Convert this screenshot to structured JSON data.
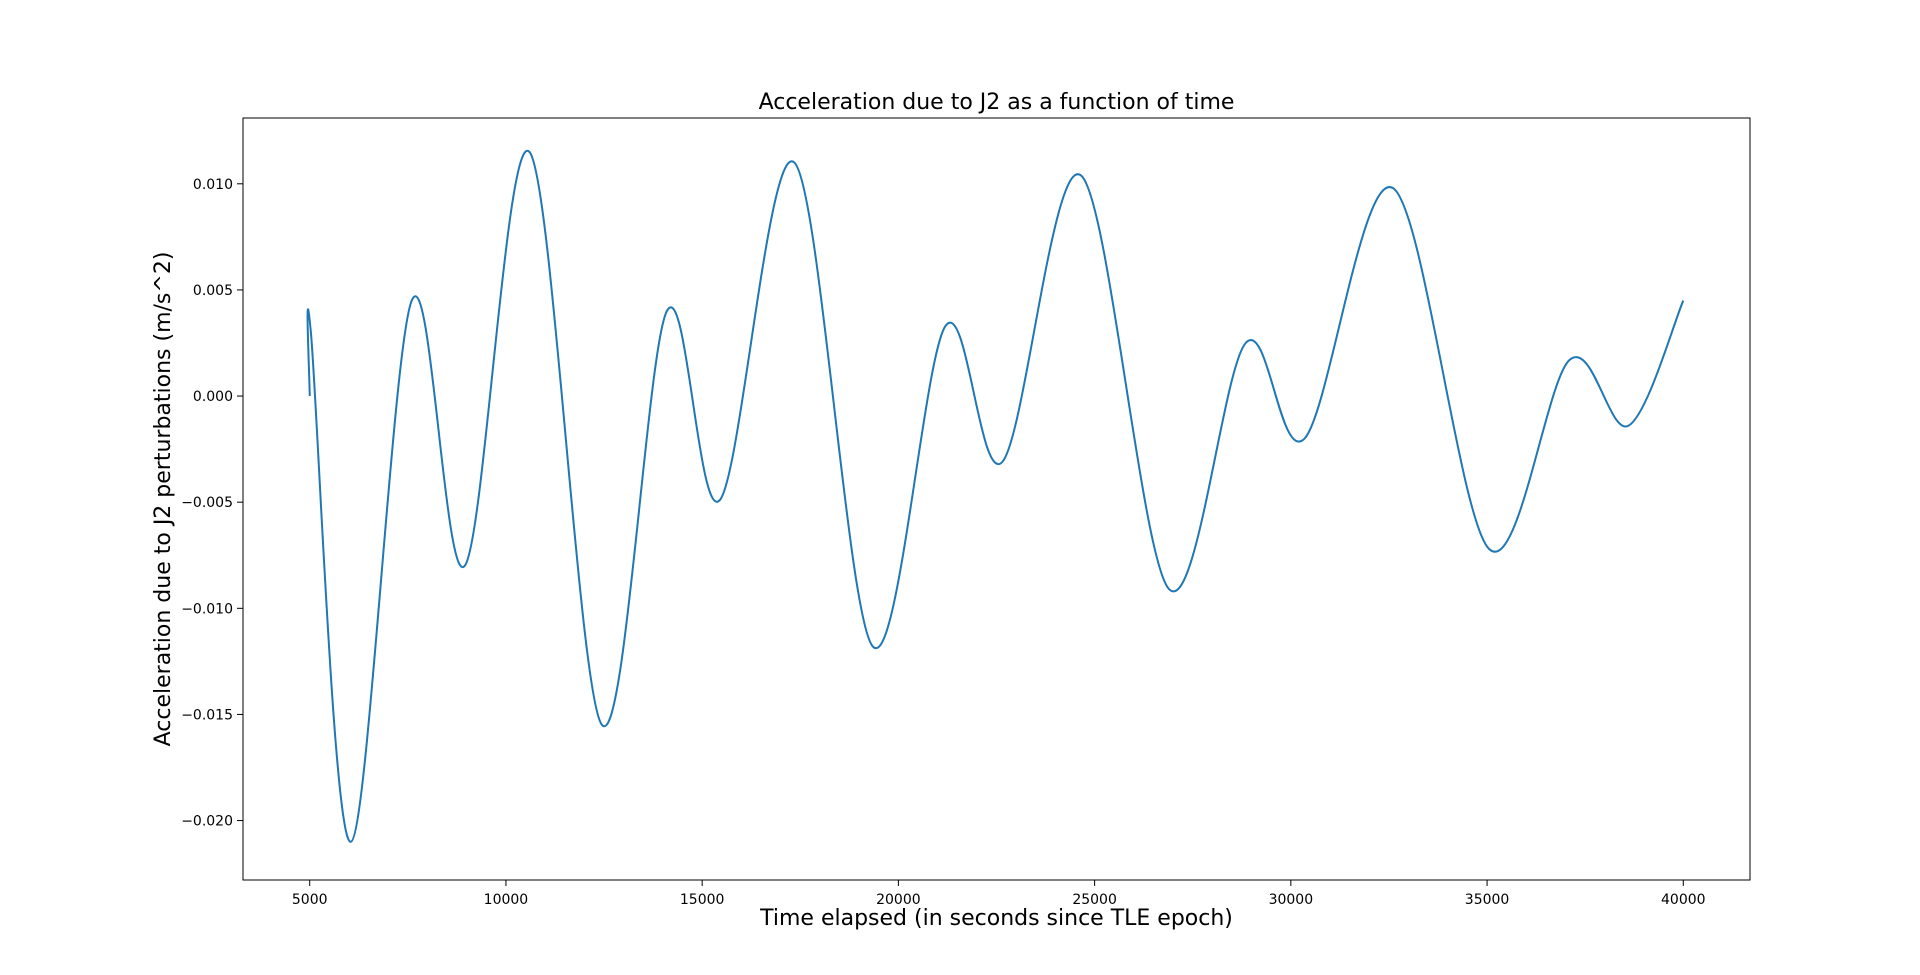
{
  "chart_data": {
    "type": "line",
    "title": "Acceleration due to J2 as a function of time",
    "xlabel": "Time elapsed (in seconds since TLE epoch)",
    "ylabel": "Acceleration due to J2 perturbations (m/s^2)",
    "xlim": [
      3300,
      41700
    ],
    "ylim": [
      -0.0228,
      0.0131
    ],
    "xticks": [
      5000,
      10000,
      15000,
      20000,
      25000,
      30000,
      35000,
      40000
    ],
    "xtick_labels": [
      "5000",
      "10000",
      "15000",
      "20000",
      "25000",
      "30000",
      "35000",
      "40000"
    ],
    "yticks": [
      -0.02,
      -0.015,
      -0.01,
      -0.005,
      0.0,
      0.005,
      0.01
    ],
    "ytick_labels": [
      "−0.020",
      "−0.015",
      "−0.010",
      "−0.005",
      "0.000",
      "0.005",
      "0.010"
    ],
    "grid": false,
    "legend": "none",
    "line_color": "#1f77b4",
    "series": [
      {
        "x": [
          5000,
          5030,
          6050,
          7600,
          8950,
          10600,
          12450,
          14100,
          15450,
          17350,
          19350,
          21200,
          22650,
          24650,
          26900,
          28850,
          30350,
          32600,
          35050,
          37100,
          38600,
          40000
        ],
        "values": [
          0.0,
          0.003,
          -0.021,
          0.0045,
          -0.008,
          0.0115,
          -0.0155,
          0.004,
          -0.0049,
          0.011,
          -0.0118,
          0.0033,
          -0.0031,
          0.0104,
          -0.0091,
          0.0025,
          -0.002,
          0.0098,
          -0.0072,
          0.0017,
          -0.0014,
          0.0045
        ]
      }
    ]
  }
}
